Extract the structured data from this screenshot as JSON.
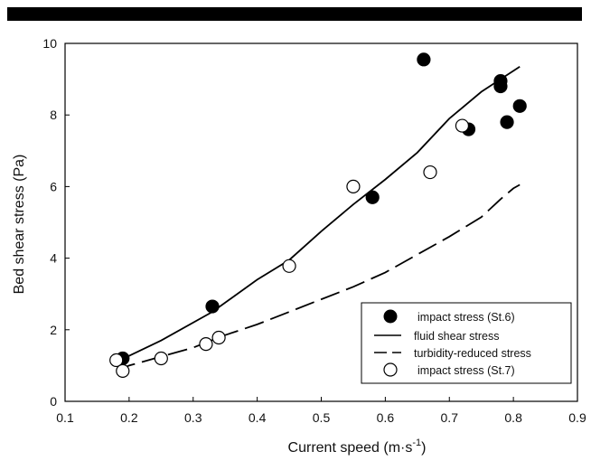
{
  "chart_data": {
    "type": "scatter",
    "title": "",
    "xlabel": "Current speed (m·s",
    "xlabel_sup": "-1",
    "xlabel_close": ")",
    "ylabel": "Bed shear stress (Pa)",
    "xlim": [
      0.1,
      0.9
    ],
    "ylim": [
      0,
      10
    ],
    "xticks": [
      0.1,
      0.2,
      0.3,
      0.4,
      0.5,
      0.6,
      0.7,
      0.8,
      0.9
    ],
    "xtick_labels": [
      "0.1",
      "0.2",
      "0.3",
      "0.4",
      "0.5",
      "0.6",
      "0.7",
      "0.8",
      "0.9"
    ],
    "yticks": [
      0,
      2,
      4,
      6,
      8,
      10
    ],
    "ytick_labels": [
      "0",
      "2",
      "4",
      "6",
      "8",
      "10"
    ],
    "grid": false,
    "legend_position": "bottom-right",
    "series": [
      {
        "name": "impact stress (St.6)",
        "kind": "points",
        "marker": "filled-circle",
        "color": "#000000",
        "points": [
          [
            0.19,
            1.2
          ],
          [
            0.33,
            2.65
          ],
          [
            0.58,
            5.7
          ],
          [
            0.66,
            9.55
          ],
          [
            0.73,
            7.6
          ],
          [
            0.78,
            8.8
          ],
          [
            0.78,
            8.95
          ],
          [
            0.79,
            7.8
          ],
          [
            0.81,
            8.25
          ]
        ]
      },
      {
        "name": "fluid shear stress",
        "kind": "line",
        "dash": "solid",
        "color": "#000000",
        "points": [
          [
            0.18,
            1.1
          ],
          [
            0.25,
            1.7
          ],
          [
            0.33,
            2.5
          ],
          [
            0.4,
            3.4
          ],
          [
            0.45,
            3.95
          ],
          [
            0.5,
            4.75
          ],
          [
            0.55,
            5.5
          ],
          [
            0.6,
            6.2
          ],
          [
            0.65,
            6.95
          ],
          [
            0.7,
            7.9
          ],
          [
            0.75,
            8.65
          ],
          [
            0.81,
            9.35
          ]
        ]
      },
      {
        "name": "turbidity-reduced stress",
        "kind": "line",
        "dash": "dashed",
        "color": "#000000",
        "points": [
          [
            0.18,
            0.85
          ],
          [
            0.2,
            1.0
          ],
          [
            0.25,
            1.25
          ],
          [
            0.3,
            1.5
          ],
          [
            0.35,
            1.85
          ],
          [
            0.4,
            2.15
          ],
          [
            0.45,
            2.5
          ],
          [
            0.5,
            2.85
          ],
          [
            0.55,
            3.2
          ],
          [
            0.6,
            3.6
          ],
          [
            0.65,
            4.1
          ],
          [
            0.7,
            4.6
          ],
          [
            0.75,
            5.15
          ],
          [
            0.78,
            5.65
          ],
          [
            0.8,
            5.95
          ],
          [
            0.81,
            6.05
          ]
        ]
      },
      {
        "name": "impact stress (St.7)",
        "kind": "points",
        "marker": "open-circle",
        "color": "#000000",
        "points": [
          [
            0.18,
            1.15
          ],
          [
            0.19,
            0.85
          ],
          [
            0.25,
            1.2
          ],
          [
            0.32,
            1.6
          ],
          [
            0.34,
            1.78
          ],
          [
            0.45,
            3.78
          ],
          [
            0.55,
            6.0
          ],
          [
            0.67,
            6.4
          ],
          [
            0.72,
            7.7
          ]
        ]
      }
    ]
  }
}
